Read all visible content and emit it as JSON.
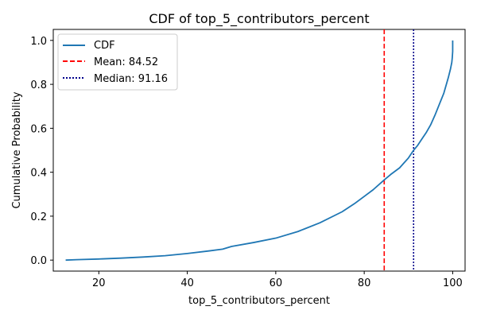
{
  "chart_data": {
    "type": "line",
    "title": "CDF of top_5_contributors_percent",
    "xlabel": "top_5_contributors_percent",
    "ylabel": "Cumulative Probability",
    "xlim": [
      9.7,
      102.8
    ],
    "ylim": [
      -0.05,
      1.05
    ],
    "xticks": [
      20,
      40,
      60,
      80,
      100
    ],
    "yticks": [
      0.0,
      0.2,
      0.4,
      0.6,
      0.8,
      1.0
    ],
    "xtick_labels": [
      "20",
      "40",
      "60",
      "80",
      "100"
    ],
    "ytick_labels": [
      "0.0",
      "0.2",
      "0.4",
      "0.6",
      "0.8",
      "1.0"
    ],
    "grid": false,
    "legend_position": "top-left",
    "series": [
      {
        "name": "CDF",
        "color": "#1f77b4",
        "style": "solid",
        "x": [
          12.5,
          15,
          20,
          25,
          30,
          35,
          40,
          45,
          48,
          50,
          55,
          60,
          65,
          70,
          75,
          78,
          80,
          82,
          84.52,
          86,
          88,
          90,
          91.16,
          92,
          93,
          94,
          95,
          96,
          97,
          98,
          99,
          99.5,
          99.8,
          99.9,
          100.0,
          100.0
        ],
        "y": [
          0.0,
          0.002,
          0.005,
          0.009,
          0.014,
          0.02,
          0.03,
          0.042,
          0.05,
          0.062,
          0.08,
          0.1,
          0.13,
          0.17,
          0.22,
          0.26,
          0.29,
          0.32,
          0.365,
          0.39,
          0.42,
          0.465,
          0.5,
          0.52,
          0.55,
          0.58,
          0.615,
          0.66,
          0.71,
          0.76,
          0.83,
          0.87,
          0.9,
          0.92,
          0.95,
          1.0
        ]
      }
    ],
    "reference_lines": [
      {
        "name": "Mean: 84.52",
        "value": 84.52,
        "color": "#ff0000",
        "style": "dashed"
      },
      {
        "name": "Median: 91.16",
        "value": 91.16,
        "color": "#00008b",
        "style": "dotted"
      }
    ]
  }
}
